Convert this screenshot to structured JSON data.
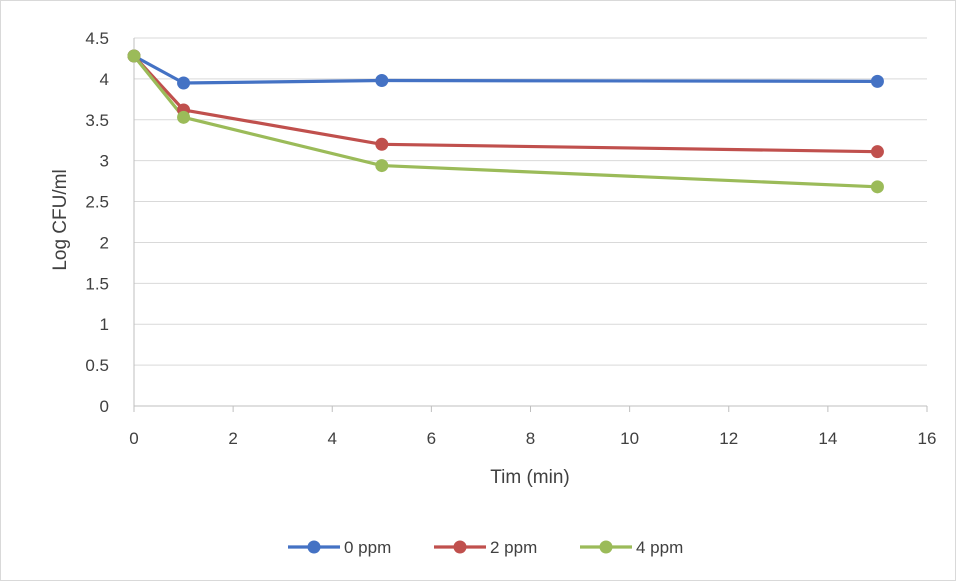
{
  "chart_data": {
    "type": "line",
    "title": "",
    "xlabel": "Tim (min)",
    "ylabel": "Log CFU/ml",
    "xlim": [
      0,
      16
    ],
    "ylim": [
      0,
      4.5
    ],
    "x_ticks": [
      "0",
      "2",
      "4",
      "6",
      "8",
      "10",
      "12",
      "14",
      "16"
    ],
    "y_ticks": [
      "0",
      "0.5",
      "1",
      "1.5",
      "2",
      "2.5",
      "3",
      "3.5",
      "4",
      "4.5"
    ],
    "grid": true,
    "legend_position": "bottom",
    "x": [
      0,
      1,
      5,
      15
    ],
    "series": [
      {
        "name": "0 ppm",
        "color": "#4472c4",
        "values": [
          4.28,
          3.95,
          3.98,
          3.97
        ]
      },
      {
        "name": "2 ppm",
        "color": "#c0504d",
        "values": [
          4.28,
          3.62,
          3.2,
          3.11
        ]
      },
      {
        "name": "4 ppm",
        "color": "#9bbb59",
        "values": [
          4.28,
          3.53,
          2.94,
          2.68
        ]
      }
    ]
  }
}
